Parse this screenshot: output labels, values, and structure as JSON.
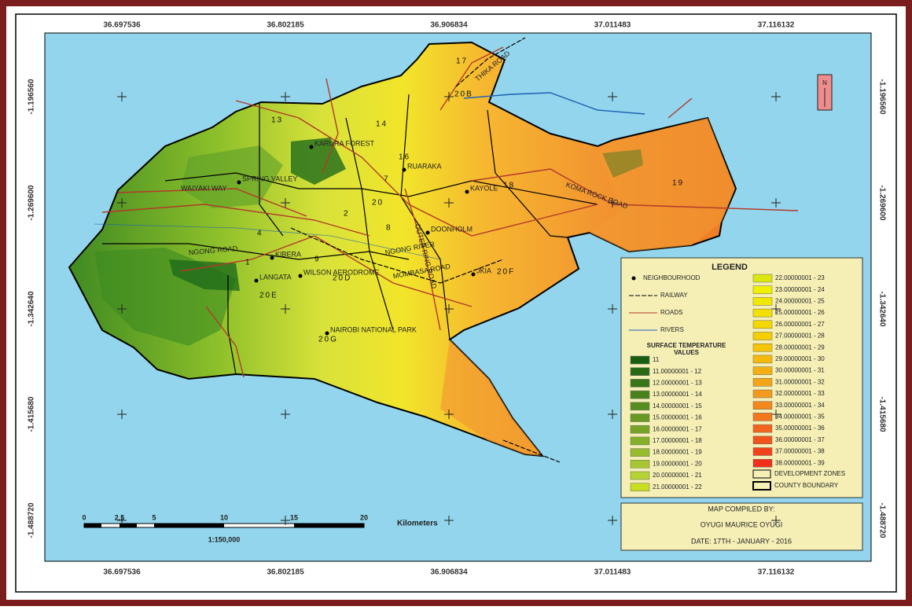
{
  "coordinates": {
    "longitudes": [
      "36.697536",
      "36.802185",
      "36.906834",
      "37.011483",
      "37.116132"
    ],
    "latitudes": [
      "-1.196560",
      "-1.269600",
      "-1.342640",
      "-1.415680",
      "-1.488720"
    ]
  },
  "north_arrow": "N",
  "places": [
    "KARURA FOREST",
    "RUARAKA",
    "KAYOLE",
    "SPRING VALLEY",
    "KIBERA",
    "LANGATA",
    "WILSON AERODROME",
    "DOONHOLM",
    "JKIA",
    "NAIROBI NATIONAL PARK",
    "KOMA ROCK ROAD",
    "NGONG ROAD",
    "NGONG RIVER",
    "MOMBASA ROAD",
    "OUTER RING ROAD",
    "THIKA ROAD",
    "WAIYAKI WAY"
  ],
  "zones": [
    "17",
    "14",
    "13",
    "16",
    "7",
    "20",
    "2",
    "8",
    "18",
    "19",
    "4",
    "1",
    "9",
    "20B",
    "20D",
    "20E",
    "20F",
    "20G"
  ],
  "legend": {
    "title": "LEGEND",
    "neighbourhood": "NEIGHBOURHOOD",
    "railway": "RAILWAY",
    "roads": "ROADS",
    "rivers": "RIVERS",
    "surface_temperature_title": [
      "SURFACE TEMPERATURE",
      "VALUES"
    ],
    "classes": [
      "11",
      "11.00000001 - 12",
      "12.00000001 - 13",
      "13.00000001 - 14",
      "14.00000001 - 15",
      "15.00000001 - 16",
      "16.00000001 - 17",
      "17.00000001 - 18",
      "18.00000001 - 19",
      "19.00000001 - 20",
      "20.00000001 - 21",
      "21.00000001 - 22",
      "22.00000001 - 23",
      "23.00000001 - 24",
      "24.00000001 - 25",
      "25.00000001 - 26",
      "26.00000001 - 27",
      "27.00000001 - 28",
      "28.00000001 - 29",
      "29.00000001 - 30",
      "30.00000001 - 31",
      "31.00000001 - 32",
      "32.00000001 - 33",
      "33.00000001 - 34",
      "34.00000001 - 35",
      "35.00000001 - 36",
      "36.00000001 - 37",
      "37.00000001 - 38",
      "38.00000001 - 39"
    ],
    "development_zones": "DEVELOPMENT ZONES",
    "county_boundary": "COUNTY BOUNDARY"
  },
  "credits": {
    "heading": "MAP COMPILED BY:",
    "author": "OYUGI MAURICE OYUGI",
    "date": "DATE: 17TH - JANUARY - 2016"
  },
  "scale_bar": {
    "ticks": [
      "0",
      "2.5",
      "5",
      "10",
      "15",
      "20"
    ],
    "unit": "Kilometers",
    "ratio": "1:150,000"
  }
}
